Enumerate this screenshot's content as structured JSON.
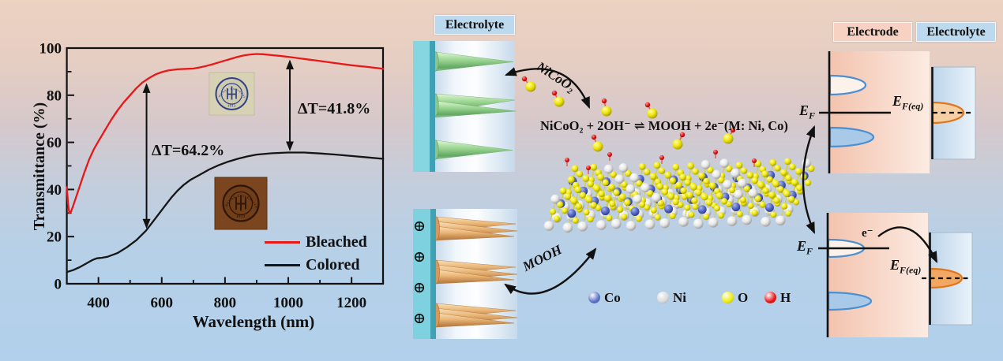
{
  "colors": {
    "background_top": "#ebd2c1",
    "background_bottom": "#b2d0eb",
    "bleached_curve": "#e81818",
    "colored_curve": "#151515",
    "electrode_chip": "#f7d2c2",
    "electrolyte_chip": "#bcd9ee",
    "teal_substrate": "#7ed2e0",
    "green_cone": "#8cc88c",
    "orange_cone": "#e0a868",
    "band_ellipse_blue": "#4a8fd0",
    "band_ellipse_orange": "#e0761c"
  },
  "chart_data": {
    "type": "line",
    "title": "",
    "xlabel": "Wavelength (nm)",
    "ylabel": "Transmittance (%)",
    "xlim": [
      300,
      1300
    ],
    "ylim": [
      0,
      100
    ],
    "grid": false,
    "legend_position": "lower right",
    "x_major_ticks": [
      400,
      600,
      800,
      1000,
      1200
    ],
    "x_minor_ticks": [
      500,
      700,
      900,
      1100,
      1300
    ],
    "y_major_ticks": [
      0,
      20,
      40,
      60,
      80,
      100
    ],
    "y_minor_ticks": [
      10,
      30,
      50,
      70,
      90
    ],
    "series": [
      {
        "name": "Bleached",
        "color": "#e81818",
        "x": [
          300,
          304,
          308,
          313,
          320,
          330,
          340,
          355,
          370,
          385,
          400,
          420,
          440,
          460,
          480,
          500,
          520,
          540,
          560,
          580,
          600,
          620,
          650,
          680,
          700,
          720,
          740,
          760,
          780,
          800,
          820,
          840,
          860,
          880,
          900,
          920,
          950,
          980,
          1000,
          1050,
          1100,
          1150,
          1200,
          1250,
          1300
        ],
        "y": [
          41,
          34,
          30,
          30.5,
          33,
          37,
          41,
          47,
          52.5,
          57,
          60.5,
          65,
          69.5,
          73.5,
          77,
          80,
          83,
          85.5,
          87.3,
          88.8,
          89.8,
          90.5,
          91,
          91.2,
          91.3,
          91.8,
          92.4,
          93.1,
          93.9,
          94.7,
          95.5,
          96.3,
          96.9,
          97.3,
          97.5,
          97.4,
          97,
          96.6,
          96.3,
          95.4,
          94.5,
          93.6,
          92.7,
          92,
          91.2
        ]
      },
      {
        "name": "Colored",
        "color": "#151515",
        "x": [
          300,
          320,
          340,
          360,
          380,
          395,
          410,
          430,
          460,
          490,
          520,
          550,
          570,
          590,
          610,
          630,
          650,
          670,
          690,
          710,
          730,
          750,
          780,
          810,
          840,
          870,
          900,
          950,
          1000,
          1050,
          1100,
          1150,
          1200,
          1250,
          1300
        ],
        "y": [
          5,
          5.8,
          7,
          8.5,
          10,
          10.8,
          11,
          11.5,
          13,
          15.5,
          18.5,
          22.5,
          26,
          29.5,
          33,
          36.5,
          39.5,
          42,
          44,
          45.5,
          47,
          48.5,
          50.3,
          51.8,
          53,
          54,
          54.8,
          55.4,
          55.7,
          55.7,
          55.3,
          54.8,
          54.2,
          53.6,
          53
        ]
      }
    ],
    "annotations": [
      {
        "text": "ΔT=64.2%",
        "x_nm": 552,
        "y_from": 24,
        "y_to": 84.5
      },
      {
        "text": "ΔT=41.8%",
        "x_nm": 1005,
        "y_from": 56.9,
        "y_to": 94.5
      }
    ],
    "insets": [
      {
        "name": "bleached-sample-photo",
        "seal_text": "HENAN UNIVERSITY",
        "year": "1912"
      },
      {
        "name": "colored-sample-photo",
        "seal_text": "HENAN UNIVERSITY",
        "year": "1912"
      }
    ]
  },
  "middle": {
    "electrolyte_label": "Electrolyte",
    "arrow_top_label": "NiCoO₂",
    "arrow_bottom_label": "MOOH",
    "reaction": "NiCoO₂ + 2OH⁻ ⇌ MOOH + 2e⁻(M: Ni, Co)",
    "atom_legend": [
      {
        "symbol": "Co",
        "color": "#5a6ec6"
      },
      {
        "symbol": "Ni",
        "color": "#d8d8d8"
      },
      {
        "symbol": "O",
        "color": "#f0ec00"
      },
      {
        "symbol": "H",
        "color": "#e81010"
      }
    ]
  },
  "right": {
    "electrode_label": "Electrode",
    "electrolyte_label": "Electrolyte",
    "electron_label": "e⁻",
    "ef": {
      "main": "E",
      "sub": "F"
    },
    "efeq": {
      "main": "E",
      "sub": "F(eq)"
    }
  }
}
